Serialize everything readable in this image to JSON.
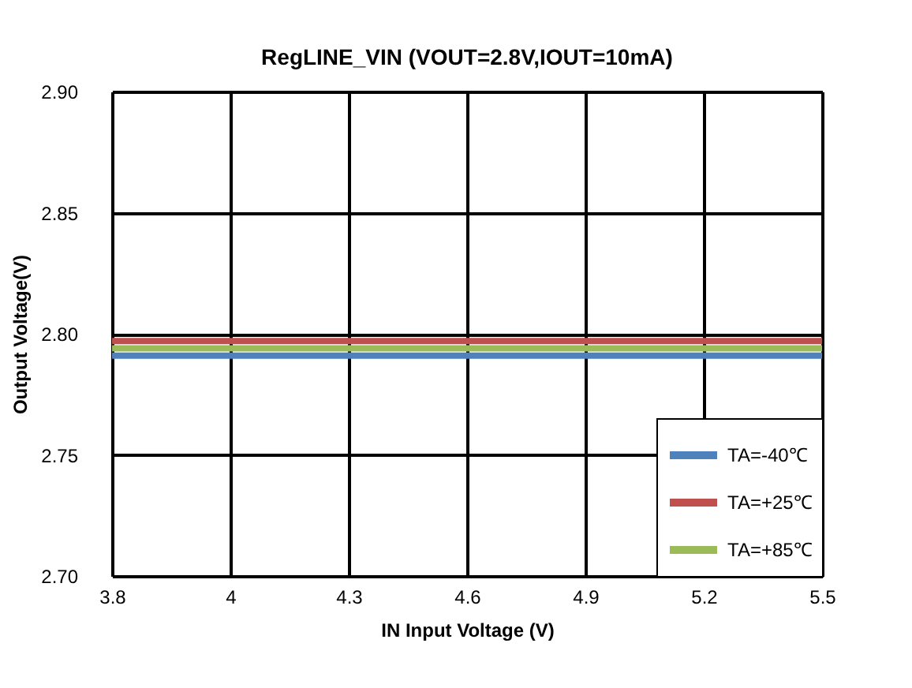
{
  "chart_data": {
    "type": "line",
    "title": "RegLINE_VIN  (VOUT=2.8V,IOUT=10mA)",
    "xlabel": "IN Input Voltage (V)",
    "ylabel": "Output Voltage(V)",
    "categories": [
      "3.8",
      "4",
      "4.3",
      "4.6",
      "4.9",
      "5.2",
      "5.5"
    ],
    "series": [
      {
        "name": "TA=-40℃",
        "color": "#4f81bd",
        "values": [
          2.791,
          2.791,
          2.791,
          2.791,
          2.791,
          2.791,
          2.791
        ]
      },
      {
        "name": "TA=+25℃",
        "color": "#c0504d",
        "values": [
          2.797,
          2.797,
          2.797,
          2.797,
          2.797,
          2.797,
          2.797
        ]
      },
      {
        "name": "TA=+85℃",
        "color": "#9bbb59",
        "values": [
          2.794,
          2.794,
          2.794,
          2.794,
          2.794,
          2.794,
          2.794
        ]
      }
    ],
    "ylim": [
      2.7,
      2.9
    ],
    "yticks": [
      {
        "value": 2.7,
        "label": "2.70"
      },
      {
        "value": 2.75,
        "label": "2.75"
      },
      {
        "value": 2.8,
        "label": "2.80"
      },
      {
        "value": 2.85,
        "label": "2.85"
      },
      {
        "value": 2.9,
        "label": "2.90"
      }
    ],
    "grid": true,
    "legend": "bottom right",
    "marker": "none",
    "line_style": "solid"
  }
}
